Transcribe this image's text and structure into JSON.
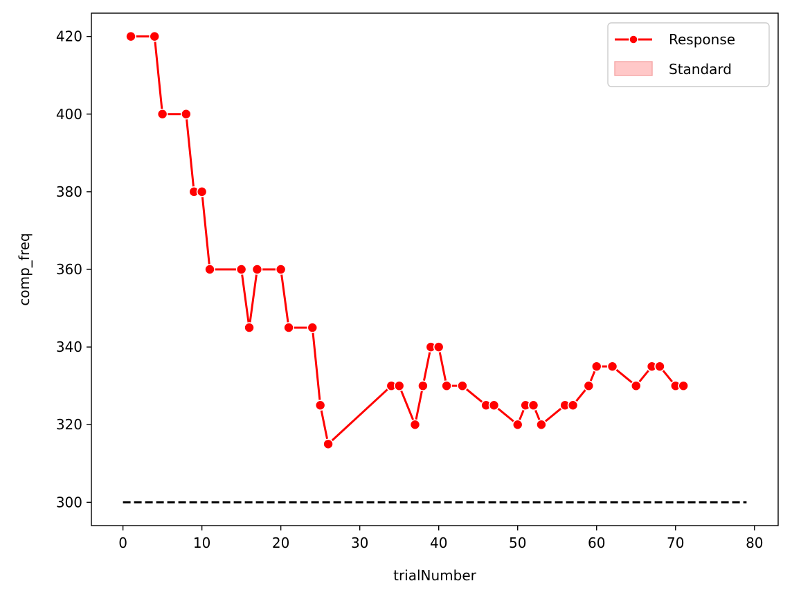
{
  "chart_data": {
    "type": "line",
    "xlabel": "trialNumber",
    "ylabel": "comp_freq",
    "xlim": [
      -4,
      83
    ],
    "ylim": [
      294,
      426
    ],
    "xticks": [
      0,
      10,
      20,
      30,
      40,
      50,
      60,
      70,
      80
    ],
    "yticks": [
      300,
      320,
      340,
      360,
      380,
      400,
      420
    ],
    "grid": false,
    "legend_position": "top-right",
    "series": [
      {
        "name": "Response",
        "color": "#ff0000",
        "marker": "circle",
        "x": [
          1,
          4,
          5,
          8,
          9,
          10,
          11,
          15,
          16,
          17,
          20,
          21,
          24,
          25,
          26,
          34,
          35,
          37,
          38,
          39,
          40,
          41,
          43,
          46,
          47,
          50,
          51,
          52,
          53,
          56,
          57,
          59,
          60,
          62,
          65,
          67,
          68,
          70,
          71
        ],
        "y": [
          420,
          420,
          400,
          400,
          380,
          380,
          360,
          360,
          345,
          360,
          360,
          345,
          345,
          325,
          315,
          330,
          330,
          320,
          330,
          340,
          340,
          330,
          330,
          325,
          325,
          320,
          325,
          325,
          320,
          325,
          325,
          330,
          335,
          335,
          330,
          335,
          335,
          330,
          330
        ]
      },
      {
        "name": "Standard",
        "color": "#000000",
        "legend_color": "#ffc8c8",
        "style": "dashed",
        "x": [
          0,
          79
        ],
        "y": [
          300,
          300
        ]
      }
    ]
  }
}
